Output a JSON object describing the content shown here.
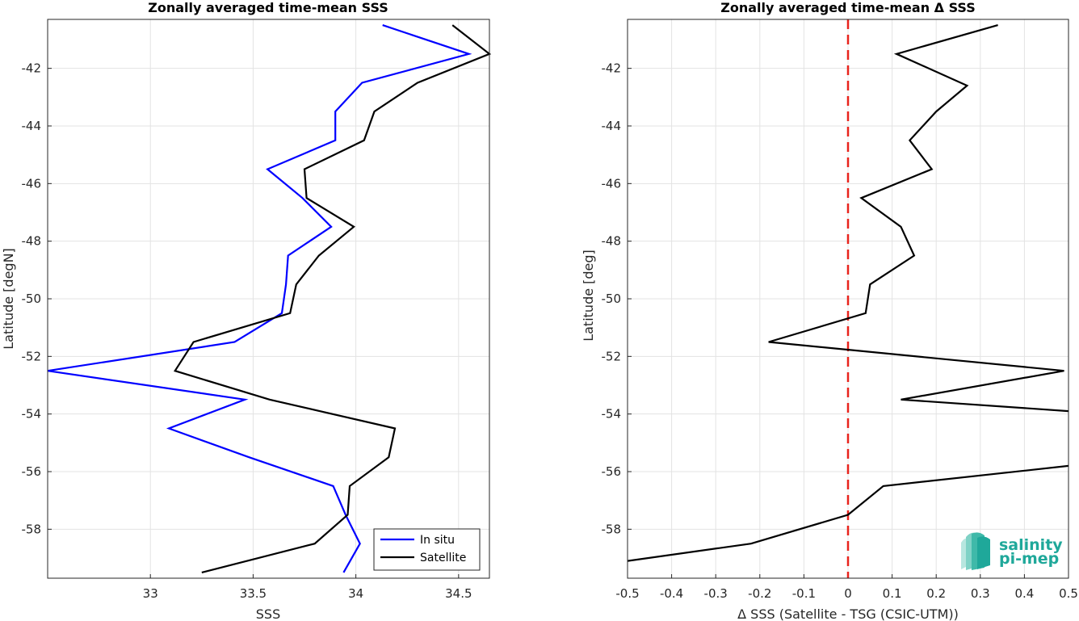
{
  "chart_data": [
    {
      "type": "line",
      "title": "Zonally averaged time-mean SSS",
      "xlabel": "SSS",
      "ylabel": "Latitude [degN]",
      "xlim": [
        32.5,
        34.65
      ],
      "ylim": [
        -59.7,
        -40.3
      ],
      "xticks": [
        33,
        33.5,
        34,
        34.5
      ],
      "xtick_labels": [
        "33",
        "33.5",
        "34",
        "34.5"
      ],
      "yticks": [
        -42,
        -44,
        -46,
        -48,
        -50,
        -52,
        -54,
        -56,
        -58
      ],
      "ytick_labels": [
        "-42",
        "-44",
        "-46",
        "-48",
        "-50",
        "-52",
        "-54",
        "-56",
        "-58"
      ],
      "grid": true,
      "legend_position": "bottom-right",
      "series": [
        {
          "name": "In situ",
          "color": "#0000ff",
          "points": [
            [
              34.13,
              -40.5
            ],
            [
              34.55,
              -41.5
            ],
            [
              34.03,
              -42.5
            ],
            [
              33.9,
              -43.5
            ],
            [
              33.9,
              -44.5
            ],
            [
              33.57,
              -45.5
            ],
            [
              33.74,
              -46.5
            ],
            [
              33.88,
              -47.5
            ],
            [
              33.67,
              -48.5
            ],
            [
              33.66,
              -49.5
            ],
            [
              33.64,
              -50.5
            ],
            [
              33.41,
              -51.5
            ],
            [
              32.5,
              -52.5
            ],
            [
              33.46,
              -53.5
            ],
            [
              33.09,
              -54.5
            ],
            [
              33.48,
              -55.5
            ],
            [
              33.89,
              -56.5
            ],
            [
              33.95,
              -57.5
            ],
            [
              34.02,
              -58.5
            ],
            [
              33.94,
              -59.5
            ]
          ]
        },
        {
          "name": "Satellite",
          "color": "#000000",
          "points": [
            [
              34.47,
              -40.5
            ],
            [
              34.65,
              -41.5
            ],
            [
              34.3,
              -42.5
            ],
            [
              34.09,
              -43.5
            ],
            [
              34.04,
              -44.5
            ],
            [
              33.75,
              -45.5
            ],
            [
              33.76,
              -46.5
            ],
            [
              33.99,
              -47.5
            ],
            [
              33.82,
              -48.5
            ],
            [
              33.71,
              -49.5
            ],
            [
              33.68,
              -50.5
            ],
            [
              33.21,
              -51.5
            ],
            [
              33.12,
              -52.5
            ],
            [
              33.58,
              -53.5
            ],
            [
              34.19,
              -54.5
            ],
            [
              34.16,
              -55.5
            ],
            [
              33.97,
              -56.5
            ],
            [
              33.96,
              -57.5
            ],
            [
              33.8,
              -58.5
            ],
            [
              33.25,
              -59.5
            ]
          ]
        }
      ]
    },
    {
      "type": "line",
      "title": "Zonally averaged time-mean Δ SSS",
      "xlabel": "Δ SSS (Satellite - TSG (CSIC-UTM))",
      "ylabel": "Latitude [deg]",
      "xlim": [
        -0.5,
        0.5
      ],
      "ylim": [
        -59.7,
        -40.3
      ],
      "xticks": [
        -0.5,
        -0.4,
        -0.3,
        -0.2,
        -0.1,
        0,
        0.1,
        0.2,
        0.3,
        0.4,
        0.5
      ],
      "xtick_labels": [
        "-0.5",
        "-0.4",
        "-0.3",
        "-0.2",
        "-0.1",
        "0",
        "0.1",
        "0.2",
        "0.3",
        "0.4",
        "0.5"
      ],
      "yticks": [
        -42,
        -44,
        -46,
        -48,
        -50,
        -52,
        -54,
        -56,
        -58
      ],
      "ytick_labels": [
        "-42",
        "-44",
        "-46",
        "-48",
        "-50",
        "-52",
        "-54",
        "-56",
        "-58"
      ],
      "grid": true,
      "reference_line": {
        "x": 0,
        "color": "#e8231c",
        "style": "dashed"
      },
      "series": [
        {
          "color": "#000000",
          "points": [
            [
              0.34,
              -40.5
            ],
            [
              0.11,
              -41.5
            ],
            [
              0.27,
              -42.6
            ],
            [
              0.2,
              -43.5
            ],
            [
              0.14,
              -44.5
            ],
            [
              0.19,
              -45.5
            ],
            [
              0.03,
              -46.5
            ],
            [
              0.12,
              -47.5
            ],
            [
              0.15,
              -48.5
            ],
            [
              0.05,
              -49.5
            ],
            [
              0.04,
              -50.5
            ],
            [
              -0.18,
              -51.5
            ],
            [
              0.49,
              -52.5
            ],
            [
              0.12,
              -53.5
            ],
            [
              0.5,
              -53.9
            ]
          ],
          "points_lower": [
            [
              0.5,
              -55.8
            ],
            [
              0.08,
              -56.5
            ],
            [
              0.0,
              -57.5
            ],
            [
              -0.22,
              -58.5
            ],
            [
              -0.5,
              -59.1
            ]
          ]
        }
      ]
    }
  ],
  "legend": {
    "items": [
      "In situ",
      "Satellite"
    ]
  },
  "logo": {
    "line1": "salinity",
    "line2": "pi-mep"
  }
}
